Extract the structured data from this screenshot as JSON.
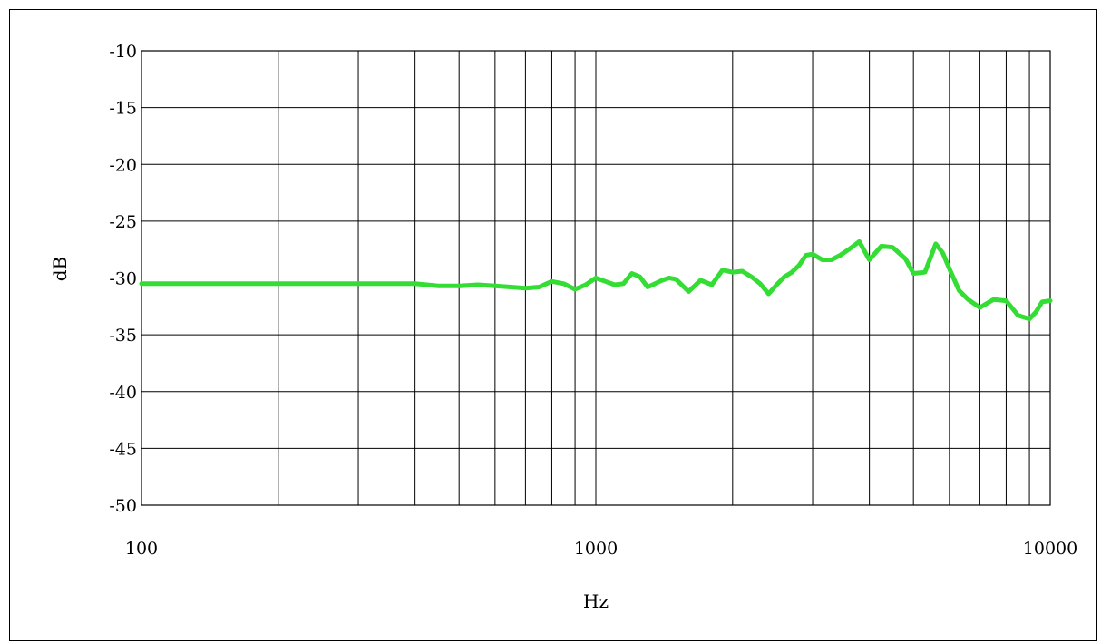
{
  "chart_data": {
    "type": "line",
    "title": "",
    "xlabel": "Hz",
    "ylabel": "dB",
    "xscale": "log",
    "xlim": [
      100,
      10000
    ],
    "ylim": [
      -50,
      -10
    ],
    "grid": true,
    "x_tick_labels": [
      "100",
      "1000",
      "10000"
    ],
    "x_tick_values": [
      100,
      1000,
      10000
    ],
    "y_tick_labels": [
      "-10",
      "-15",
      "-20",
      "-25",
      "-30",
      "-35",
      "-40",
      "-45",
      "-50"
    ],
    "y_tick_values": [
      -10,
      -15,
      -20,
      -25,
      -30,
      -35,
      -40,
      -45,
      -50
    ],
    "line_color": "#33dd33",
    "series": [
      {
        "x": [
          100,
          150,
          200,
          300,
          400,
          450,
          500,
          550,
          600,
          650,
          700,
          750,
          800,
          850,
          900,
          950,
          1000,
          1050,
          1100,
          1150,
          1200,
          1250,
          1300,
          1350,
          1400,
          1450,
          1500,
          1600,
          1700,
          1800,
          1900,
          2000,
          2100,
          2200,
          2300,
          2400,
          2500,
          2600,
          2700,
          2800,
          2900,
          3000,
          3150,
          3300,
          3450,
          3600,
          3800,
          4000,
          4250,
          4500,
          4800,
          5000,
          5300,
          5600,
          5800,
          6000,
          6300,
          6600,
          7000,
          7500,
          8000,
          8500,
          9000,
          9300,
          9600,
          10000
        ],
        "y": [
          -30.5,
          -30.5,
          -30.5,
          -30.5,
          -30.5,
          -30.7,
          -30.7,
          -30.6,
          -30.7,
          -30.8,
          -30.9,
          -30.8,
          -30.3,
          -30.5,
          -31.0,
          -30.6,
          -30.0,
          -30.3,
          -30.6,
          -30.5,
          -29.6,
          -29.9,
          -30.8,
          -30.5,
          -30.2,
          -30.0,
          -30.1,
          -31.2,
          -30.2,
          -30.6,
          -29.3,
          -29.5,
          -29.4,
          -29.9,
          -30.5,
          -31.4,
          -30.6,
          -29.9,
          -29.5,
          -28.9,
          -28.0,
          -27.9,
          -28.4,
          -28.4,
          -28.0,
          -27.5,
          -26.8,
          -28.4,
          -27.2,
          -27.3,
          -28.3,
          -29.6,
          -29.5,
          -27.0,
          -27.8,
          -29.2,
          -31.1,
          -31.9,
          -32.6,
          -31.9,
          -32.0,
          -33.3,
          -33.6,
          -33.0,
          -32.1,
          -32.0
        ]
      }
    ]
  }
}
